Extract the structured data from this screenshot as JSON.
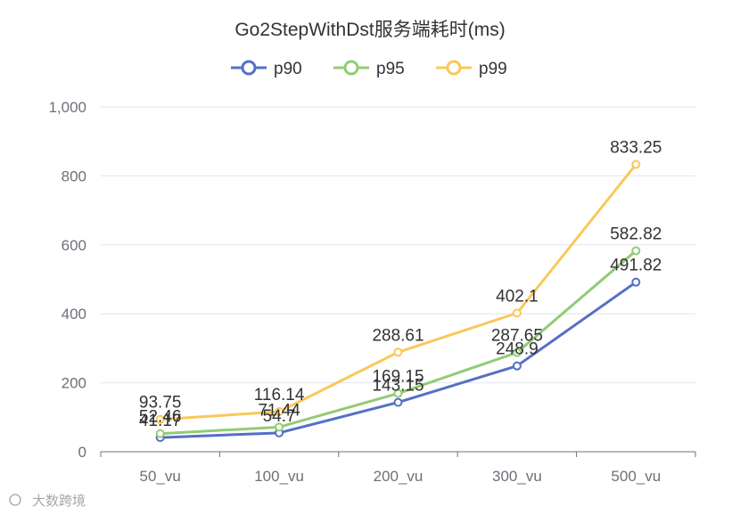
{
  "chart_data": {
    "type": "line",
    "title": "Go2StepWithDst服务端耗时(ms)",
    "categories": [
      "50_vu",
      "100_vu",
      "200_vu",
      "300_vu",
      "500_vu"
    ],
    "ylim": [
      0,
      1000
    ],
    "yticks": [
      0,
      200,
      400,
      600,
      800,
      1000
    ],
    "ytick_labels": [
      "0",
      "200",
      "400",
      "600",
      "800",
      "1,000"
    ],
    "grid": true,
    "legend_position": "top",
    "series": [
      {
        "name": "p90",
        "color": "#5470c6",
        "values": [
          41.17,
          54.7,
          143.15,
          248.9,
          491.82
        ],
        "labels": [
          "41.17",
          "54.7",
          "143.15",
          "248.9",
          "491.82"
        ]
      },
      {
        "name": "p95",
        "color": "#91cc75",
        "values": [
          52.46,
          71.44,
          169.15,
          287.65,
          582.82
        ],
        "labels": [
          "52.46",
          "71.44",
          "169.15",
          "287.65",
          "582.82"
        ]
      },
      {
        "name": "p99",
        "color": "#fac858",
        "values": [
          93.75,
          116.14,
          288.61,
          402.1,
          833.25
        ],
        "labels": [
          "93.75",
          "116.14",
          "288.61",
          "402.1",
          "833.25"
        ]
      }
    ]
  },
  "watermark": "大数跨境"
}
